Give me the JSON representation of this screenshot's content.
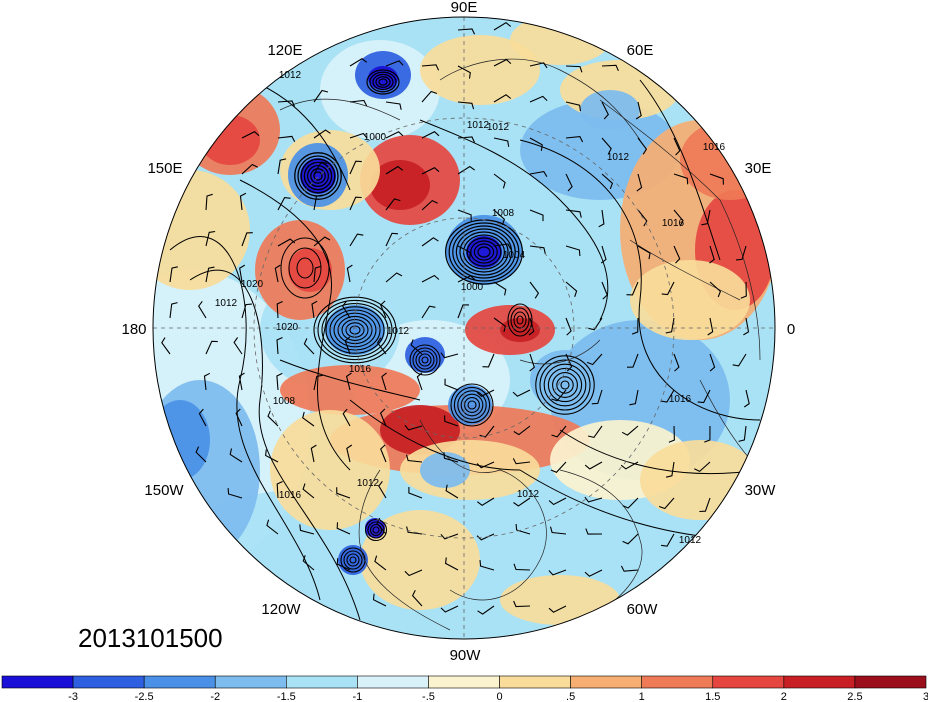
{
  "map": {
    "projection": "north-polar-stereographic",
    "longitude_labels": [
      {
        "text": "90E",
        "lon": 90
      },
      {
        "text": "60E",
        "lon": 60
      },
      {
        "text": "30E",
        "lon": 30
      },
      {
        "text": "0",
        "lon": 0
      },
      {
        "text": "30W",
        "lon": -30
      },
      {
        "text": "60W",
        "lon": -60
      },
      {
        "text": "90W",
        "lon": -90
      },
      {
        "text": "120W",
        "lon": -120
      },
      {
        "text": "150W",
        "lon": -150
      },
      {
        "text": "180",
        "lon": 180
      },
      {
        "text": "150E",
        "lon": 150
      },
      {
        "text": "120E",
        "lon": 120
      }
    ],
    "datetime": "2013101500",
    "contour_labels": [
      "1012",
      "1012",
      "1000",
      "1008",
      "1004",
      "1000",
      "1012",
      "1016",
      "1012",
      "1016",
      "1012",
      "1020",
      "1020",
      "1008",
      "1012",
      "1016",
      "1012",
      "1016",
      "1012",
      "1016",
      "1012"
    ]
  },
  "colorbar": {
    "colors": [
      "#1a0fd6",
      "#2d5fe0",
      "#4a90e6",
      "#7cbcef",
      "#a9e2f5",
      "#d9f2fa",
      "#fbf3cf",
      "#f9dc9a",
      "#f6ae72",
      "#ef7a57",
      "#e54640",
      "#c71f24",
      "#9b0f1c"
    ],
    "labels": [
      "-3",
      "-2.5",
      "-2",
      "-1.5",
      "-1",
      "-.5",
      "0",
      ".5",
      "1",
      "1.5",
      "2",
      "2.5",
      "3"
    ]
  }
}
